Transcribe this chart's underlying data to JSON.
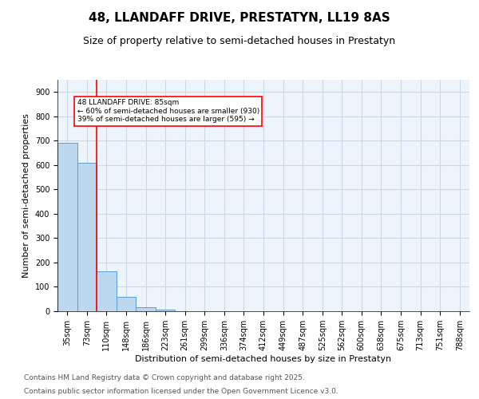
{
  "title": "48, LLANDAFF DRIVE, PRESTATYN, LL19 8AS",
  "subtitle": "Size of property relative to semi-detached houses in Prestatyn",
  "xlabel": "Distribution of semi-detached houses by size in Prestatyn",
  "ylabel": "Number of semi-detached properties",
  "bar_values": [
    690,
    610,
    165,
    60,
    15,
    5,
    1,
    0,
    0,
    0,
    0,
    0,
    0,
    0,
    0,
    0,
    0,
    0,
    0,
    0,
    0
  ],
  "bar_labels": [
    "35sqm",
    "73sqm",
    "110sqm",
    "148sqm",
    "186sqm",
    "223sqm",
    "261sqm",
    "299sqm",
    "336sqm",
    "374sqm",
    "412sqm",
    "449sqm",
    "487sqm",
    "525sqm",
    "562sqm",
    "600sqm",
    "638sqm",
    "675sqm",
    "713sqm",
    "751sqm",
    "788sqm"
  ],
  "bar_color": "#BDD7EE",
  "bar_edge_color": "#5B9BD5",
  "grid_color": "#C9D9E8",
  "background_color": "#EEF4FB",
  "red_line_x": 1.5,
  "annotation_text": "48 LLANDAFF DRIVE: 85sqm\n← 60% of semi-detached houses are smaller (930)\n39% of semi-detached houses are larger (595) →",
  "ylim": [
    0,
    950
  ],
  "yticks": [
    0,
    100,
    200,
    300,
    400,
    500,
    600,
    700,
    800,
    900
  ],
  "footer1": "Contains HM Land Registry data © Crown copyright and database right 2025.",
  "footer2": "Contains public sector information licensed under the Open Government Licence v3.0.",
  "title_fontsize": 11,
  "subtitle_fontsize": 9,
  "tick_fontsize": 7,
  "ylabel_fontsize": 8,
  "xlabel_fontsize": 8,
  "footer_fontsize": 6.5
}
